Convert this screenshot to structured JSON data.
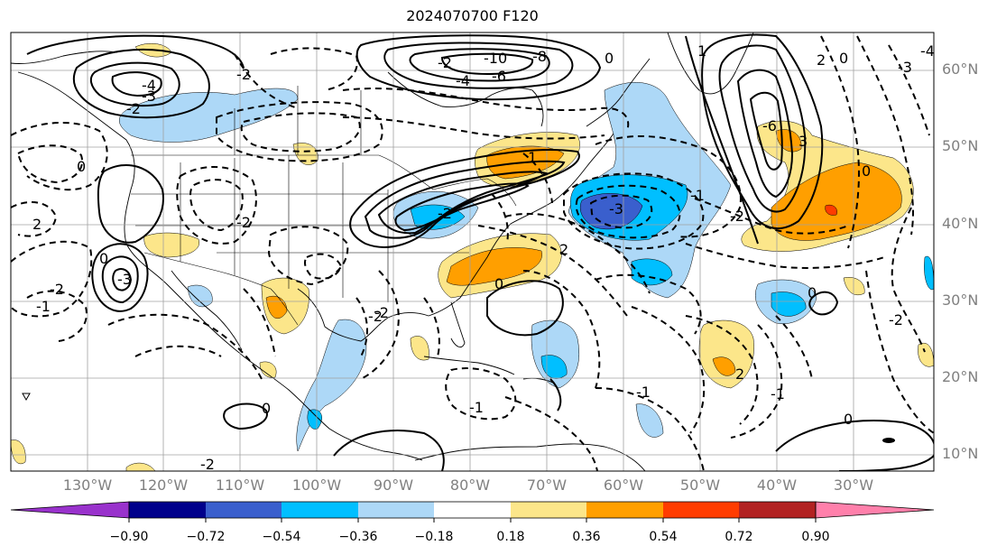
{
  "title": "2024070700 F120",
  "lon_labels": [
    "130°W",
    "120°W",
    "110°W",
    "100°W",
    "90°W",
    "80°W",
    "70°W",
    "60°W",
    "50°W",
    "40°W",
    "30°W"
  ],
  "lat_labels": [
    "60°N",
    "50°N",
    "40°N",
    "30°N",
    "20°N",
    "10°N"
  ],
  "colorbar": {
    "ticks": [
      "−0.90",
      "−0.72",
      "−0.54",
      "−0.36",
      "−0.18",
      "0.18",
      "0.36",
      "0.54",
      "0.72",
      "0.90"
    ],
    "colors": [
      "#9932cc",
      "#00008b",
      "#3a5fcd",
      "#00bfff",
      "#add8f7",
      "#ffffff",
      "#fce68a",
      "#ff9f00",
      "#ff3c00",
      "#b22222",
      "#ff80ab"
    ]
  },
  "contour_labels": [
    {
      "text": "-3"
    },
    {
      "text": "-4"
    },
    {
      "text": "-2"
    },
    {
      "text": "-10"
    },
    {
      "text": "-8"
    },
    {
      "text": "-6"
    },
    {
      "text": "-4"
    },
    {
      "text": "-2"
    },
    {
      "text": "0"
    },
    {
      "text": "-2"
    },
    {
      "text": "-3"
    },
    {
      "text": "-1"
    },
    {
      "text": "-2"
    },
    {
      "text": "2"
    },
    {
      "text": "-2"
    },
    {
      "text": "-1"
    },
    {
      "text": "0"
    },
    {
      "text": "-2"
    },
    {
      "text": "0"
    },
    {
      "text": "-1"
    },
    {
      "text": "-2"
    },
    {
      "text": "-3"
    },
    {
      "text": "-2"
    },
    {
      "text": "0"
    },
    {
      "text": "1"
    },
    {
      "text": "-6"
    },
    {
      "text": "3"
    },
    {
      "text": "2"
    },
    {
      "text": "0"
    },
    {
      "text": "-4"
    },
    {
      "text": "-3"
    },
    {
      "text": "0"
    },
    {
      "text": "-1"
    },
    {
      "text": "2"
    },
    {
      "text": "-2"
    },
    {
      "text": "0"
    },
    {
      "text": "1"
    },
    {
      "text": "2"
    },
    {
      "text": "0"
    },
    {
      "text": "-2"
    },
    {
      "text": "-1"
    },
    {
      "text": "0"
    },
    {
      "text": "-2"
    }
  ]
}
